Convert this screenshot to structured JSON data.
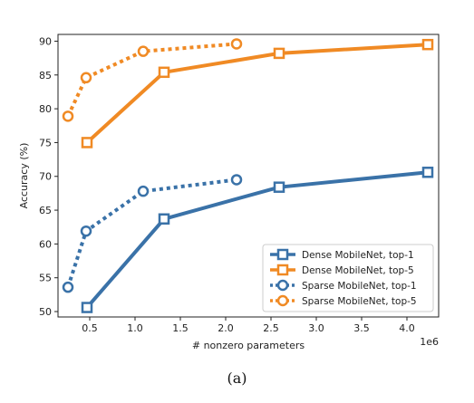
{
  "colors": {
    "blue": "#3a72a8",
    "orange": "#f08a24"
  },
  "chart_data": {
    "type": "line",
    "xlabel": "# nonzero parameters",
    "ylabel": "Accuracy (%)",
    "x_multiplier_label": "1e6",
    "xlim": [
      0.15,
      4.35
    ],
    "ylim": [
      49.2,
      91.0
    ],
    "xticks": [
      0.5,
      1.0,
      1.5,
      2.0,
      2.5,
      3.0,
      3.5,
      4.0
    ],
    "xtick_labels": [
      "0.5",
      "1.0",
      "1.5",
      "2.0",
      "2.5",
      "3.0",
      "3.5",
      "4.0"
    ],
    "yticks": [
      50,
      55,
      60,
      65,
      70,
      75,
      80,
      85,
      90
    ],
    "ytick_labels": [
      "50",
      "55",
      "60",
      "65",
      "70",
      "75",
      "80",
      "85",
      "90"
    ],
    "grid": false,
    "legend_position": "lower-right",
    "series": [
      {
        "name": "Dense MobileNet, top-1",
        "color": "#3a72a8",
        "marker": "square",
        "linestyle": "solid",
        "x": [
          0.47,
          1.32,
          2.59,
          4.23
        ],
        "y": [
          50.6,
          63.7,
          68.4,
          70.6
        ]
      },
      {
        "name": "Dense MobileNet, top-5",
        "color": "#f08a24",
        "marker": "square",
        "linestyle": "solid",
        "x": [
          0.47,
          1.32,
          2.59,
          4.23
        ],
        "y": [
          75.0,
          85.4,
          88.2,
          89.5
        ]
      },
      {
        "name": "Sparse MobileNet, top-1",
        "color": "#3a72a8",
        "marker": "circle",
        "linestyle": "dotted",
        "x": [
          0.26,
          0.46,
          1.09,
          2.12
        ],
        "y": [
          53.6,
          61.9,
          67.8,
          69.5
        ]
      },
      {
        "name": "Sparse MobileNet, top-5",
        "color": "#f08a24",
        "marker": "circle",
        "linestyle": "dotted",
        "x": [
          0.26,
          0.46,
          1.09,
          2.12
        ],
        "y": [
          78.9,
          84.6,
          88.5,
          89.6
        ]
      }
    ]
  },
  "caption": "(a)"
}
